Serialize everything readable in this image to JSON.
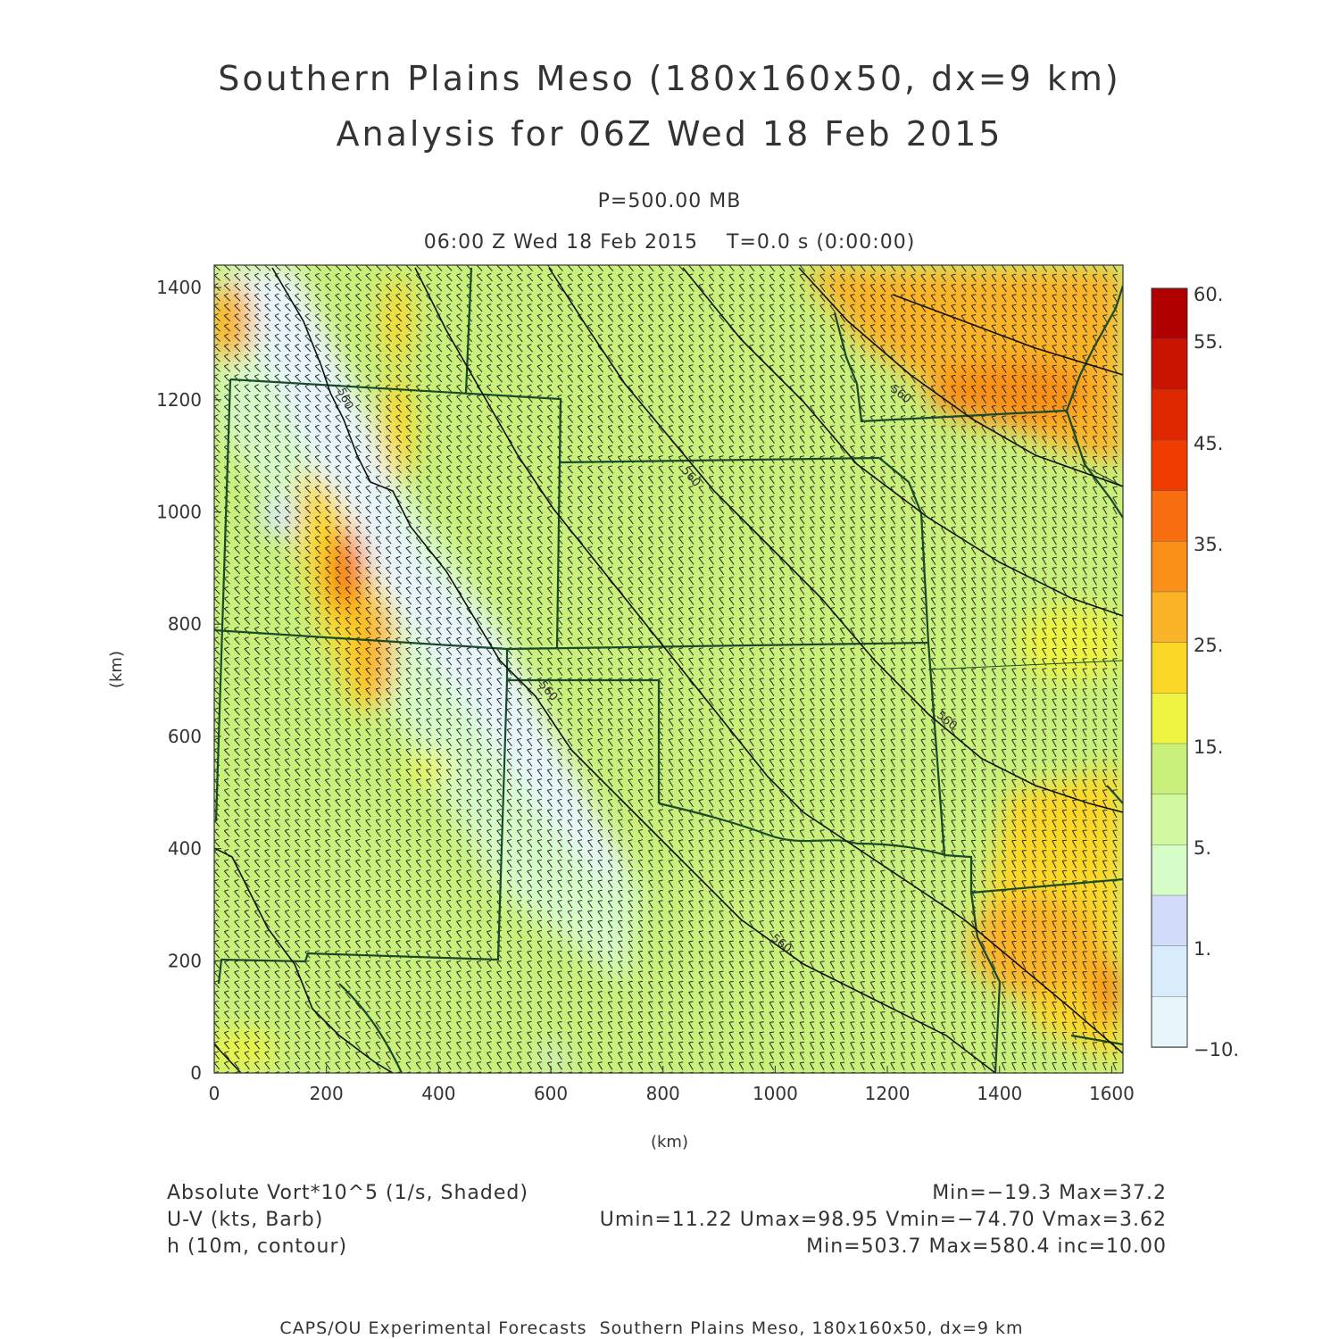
{
  "header": {
    "title_line1": "Southern Plains Meso (180x160x50, dx=9 km)",
    "title_line2": "Analysis for 06Z Wed 18 Feb 2015",
    "level": "P=500.00 MB",
    "time": "06:00 Z Wed 18 Feb 2015    T=0.0 s (0:00:00)"
  },
  "chart_data": {
    "type": "map",
    "x_axis": {
      "label": "(km)",
      "ticks": [
        0,
        200,
        400,
        600,
        800,
        1000,
        1200,
        1400,
        1600
      ],
      "range": [
        0,
        1620
      ]
    },
    "y_axis": {
      "label": "(km)",
      "ticks": [
        0,
        200,
        400,
        600,
        800,
        1000,
        1200,
        1400
      ],
      "range": [
        0,
        1440
      ]
    },
    "colorbar": {
      "labels": [
        "60.",
        "55.",
        "45.",
        "35.",
        "25.",
        "15.",
        "5.",
        "1.",
        "−10."
      ],
      "colors": [
        "#b00000",
        "#c81400",
        "#e02800",
        "#f03c00",
        "#f86e10",
        "#fa9018",
        "#fbb428",
        "#fbd828",
        "#eef440",
        "#c8f07a",
        "#d2f8a0",
        "#d6fcc8",
        "#d0dcf8",
        "#d8ecfc",
        "#e8f6fc"
      ]
    },
    "contour_labels": [
      "560",
      "560",
      "560",
      "560",
      "560",
      "560"
    ],
    "fields": {
      "shaded": "Absolute Vort*10^5 (1/s, Shaded)",
      "barb": "U-V (kts, Barb)",
      "contour": "h (10m, contour)"
    },
    "stats": {
      "shaded": "Min=−19.3 Max=37.2",
      "barb": "Umin=11.22 Umax=98.95 Vmin=−74.70 Vmax=3.62",
      "contour": "Min=503.7 Max=580.4 inc=10.00"
    }
  },
  "footer": "CAPS/OU Experimental Forecasts  Southern Plains Meso, 180x160x50, dx=9 km",
  "colors": {
    "state_border": "#1a4a2a",
    "contour": "#111111"
  }
}
